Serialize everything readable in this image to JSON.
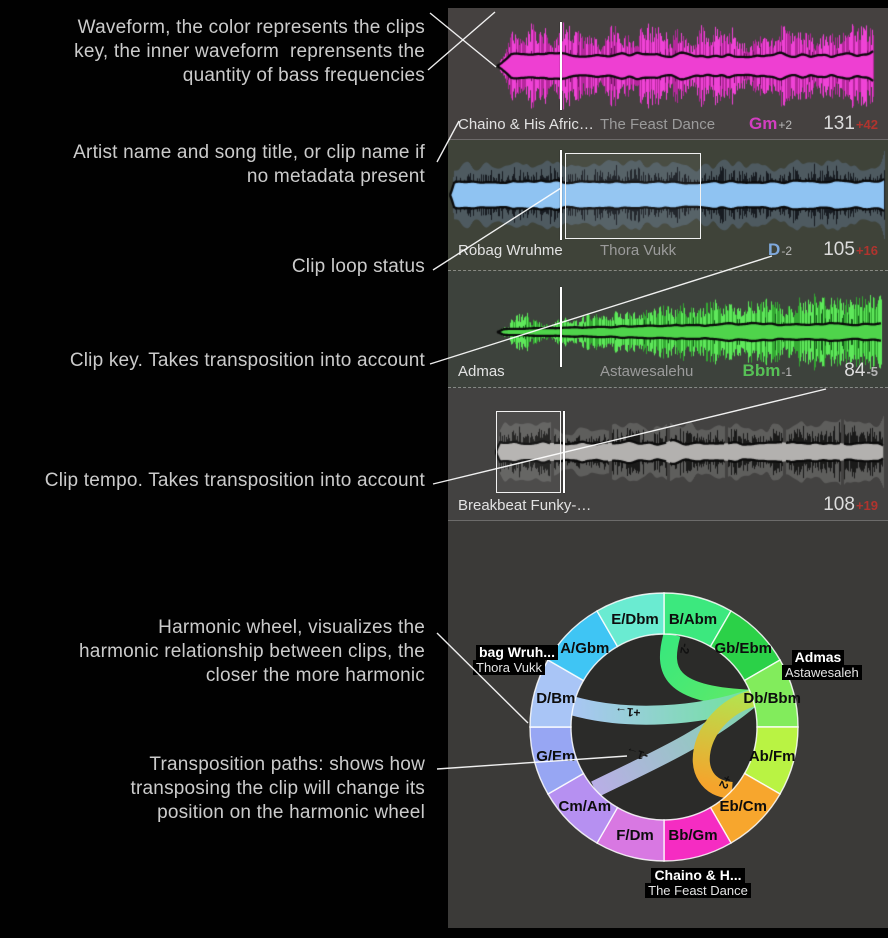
{
  "annotations": {
    "a1": [
      "Waveform, the color represents the clips",
      "key, the inner waveform  reprensents the",
      "quantity of bass frequencies"
    ],
    "a2": [
      "Artist name and song title, or clip name if",
      "no metadata present"
    ],
    "a3": [
      "Clip loop status"
    ],
    "a4": [
      "Clip key. Takes transposition into account"
    ],
    "a5": [
      "Clip tempo. Takes transposition into account"
    ],
    "a6": [
      "Harmonic wheel, visualizes the",
      "harmonic relationship between clips, the",
      "closer the more harmonic"
    ],
    "a7": [
      "Transposition paths: shows how",
      "transposing the clip will change its",
      "position on the harmonic wheel"
    ]
  },
  "clips": [
    {
      "artist": "Chaino & His Afric…",
      "title": "The Feast Dance",
      "key": "Gm",
      "key_offset": "+2",
      "key_color": "#d23ec0",
      "tempo": "131",
      "tempo_offset": "+42",
      "tempo_offset_color": "#b0342e",
      "wave": {
        "style": "solid",
        "main": "#b5289c",
        "alt": "#ef43d6",
        "deep": "#6f1560",
        "inner": "#ee3fd2",
        "bg": "#454140"
      }
    },
    {
      "artist": "Robag Wruhme",
      "title": "Thora Vukk",
      "key": "D",
      "key_offset": "-2",
      "key_color": "#7fa9dd",
      "tempo": "105",
      "tempo_offset": "+16",
      "tempo_offset_color": "#b0342e",
      "wave": {
        "style": "striate",
        "tint": "#5d7287",
        "dark": "#14171c",
        "inner": "#8fc3f2",
        "bg": "#3f4339"
      }
    },
    {
      "artist": "Admas",
      "title": "Astawesalehu",
      "key": "Bbm",
      "key_offset": "-1",
      "key_color": "#57c056",
      "tempo": "84",
      "tempo_offset": "-5",
      "tempo_offset_color": "#b5b5b5",
      "wave": {
        "style": "solid",
        "main": "#34a833",
        "alt": "#5fe85b",
        "deep": "#15591a",
        "inner": "#4fd44b",
        "bg": "#3d423c"
      }
    },
    {
      "artist": "Breakbeat Funky-…",
      "title": "",
      "key": "",
      "key_offset": "",
      "key_color": "#dcdcdc",
      "tempo": "108",
      "tempo_offset": "+19",
      "tempo_offset_color": "#b0342e",
      "wave": {
        "style": "striate",
        "tint": "#7a7a78",
        "dark": "#151515",
        "inner": "#b3b1af",
        "bg": "#434241"
      }
    }
  ],
  "wheel": {
    "segments": [
      {
        "label": "B/Abm",
        "color": "#3ce87e"
      },
      {
        "label": "Gb/Ebm",
        "color": "#2bd148"
      },
      {
        "label": "Db/Bbm",
        "color": "#82ec5c"
      },
      {
        "label": "Ab/Fm",
        "color": "#b9f343"
      },
      {
        "label": "Eb/Cm",
        "color": "#f7a62d"
      },
      {
        "label": "Bb/Gm",
        "color": "#f52cc2"
      },
      {
        "label": "F/Dm",
        "color": "#d878e2"
      },
      {
        "label": "Cm/Am",
        "color": "#b690f1"
      },
      {
        "label": "G/Em",
        "color": "#97a6f3"
      },
      {
        "label": "D/Bm",
        "color": "#a9c5f6"
      },
      {
        "label": "A/Gbm",
        "color": "#3fc5f4"
      },
      {
        "label": "E/Dbm",
        "color": "#6aebd1"
      }
    ],
    "ribbons": [
      {
        "label": "-2"
      },
      {
        "label": "+1→"
      },
      {
        "label": "-1→"
      },
      {
        "label": "+2"
      }
    ],
    "tags": [
      {
        "line1": "bag Wruh...",
        "line2": "Thora Vukk"
      },
      {
        "line1": "Admas",
        "line2": "Astawesaleh"
      },
      {
        "line1": "Chaino & H...",
        "line2": "The Feast Dance"
      }
    ],
    "disc_color": "#2b2b29"
  },
  "colors": {
    "panel": "#3b3a38",
    "annotation": "#cbcbcb",
    "pointer_line": "#ffffff"
  }
}
